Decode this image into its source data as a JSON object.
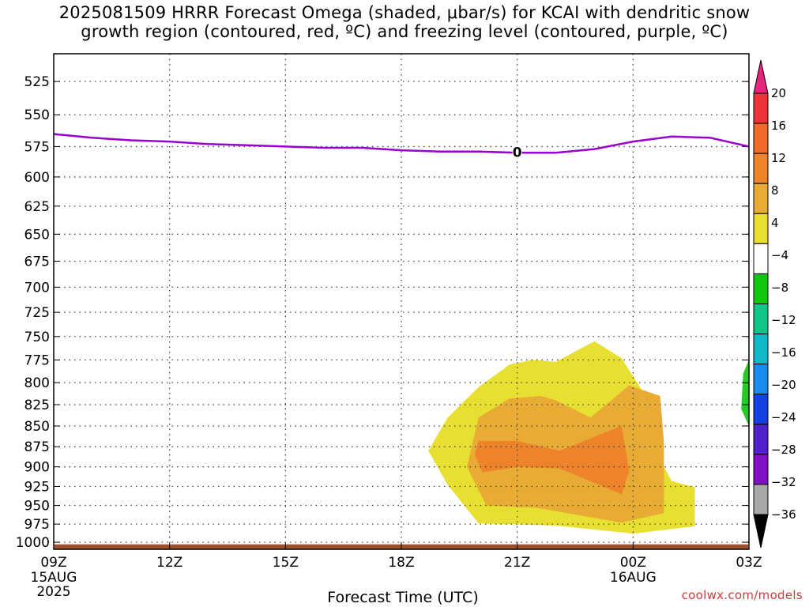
{
  "title": {
    "line1": "2025081509 HRRR Forecast Omega (shaded, μbar/s) for KCAI with dendritic snow",
    "line2": "growth region (contoured, red, ºC) and freezing level (contoured, purple, ºC)"
  },
  "credit": "coolwx.com/models",
  "colors": {
    "freezing_level": "#9a00d0",
    "ground": "#a0522d",
    "omega_4_8": "#e8df33",
    "omega_8_12": "#e8ab33",
    "omega_12_16": "#ed832b",
    "omega_neg4_neg8": "#22cc22",
    "grid": "#444444"
  },
  "chart_data": {
    "type": "time-height cross section",
    "xlabel": "Forecast Time (UTC)",
    "ylabel": "",
    "x_ticks": [
      {
        "hour": 0,
        "label": "09Z",
        "sub": [
          "15AUG",
          "2025"
        ]
      },
      {
        "hour": 3,
        "label": "12Z",
        "sub": []
      },
      {
        "hour": 6,
        "label": "15Z",
        "sub": []
      },
      {
        "hour": 9,
        "label": "18Z",
        "sub": []
      },
      {
        "hour": 12,
        "label": "21Z",
        "sub": []
      },
      {
        "hour": 15,
        "label": "00Z",
        "sub": [
          "16AUG"
        ]
      },
      {
        "hour": 18,
        "label": "03Z",
        "sub": []
      }
    ],
    "xlim": [
      0,
      18
    ],
    "ylim_hPa": [
      1010,
      505
    ],
    "y_scale": "log-pressure",
    "y_ticks": [
      525,
      550,
      575,
      600,
      625,
      650,
      675,
      700,
      725,
      750,
      775,
      800,
      825,
      850,
      875,
      900,
      925,
      950,
      975,
      1000
    ],
    "grid": true,
    "freezing_level": {
      "label": "0",
      "label_at": [
        12,
        580
      ],
      "points": [
        [
          0,
          565
        ],
        [
          1,
          568
        ],
        [
          2,
          570
        ],
        [
          3,
          571
        ],
        [
          4,
          573
        ],
        [
          5,
          574
        ],
        [
          6,
          575
        ],
        [
          7,
          576
        ],
        [
          8,
          576
        ],
        [
          9,
          578
        ],
        [
          10,
          579
        ],
        [
          11,
          579
        ],
        [
          12,
          580
        ],
        [
          13,
          580
        ],
        [
          14,
          577
        ],
        [
          15,
          571
        ],
        [
          16,
          567
        ],
        [
          17,
          568
        ],
        [
          18,
          575
        ]
      ]
    },
    "omega_contours": [
      {
        "level": "4 to 8",
        "polygon": [
          [
            12.4,
            775
          ],
          [
            13.0,
            777
          ],
          [
            14.0,
            755
          ],
          [
            14.7,
            773
          ],
          [
            15.4,
            820
          ],
          [
            15.4,
            865
          ],
          [
            16.0,
            918
          ],
          [
            16.6,
            926
          ],
          [
            16.6,
            978
          ],
          [
            15.0,
            988
          ],
          [
            13.0,
            977
          ],
          [
            11.0,
            974
          ],
          [
            10.2,
            923
          ],
          [
            9.7,
            880
          ],
          [
            10.2,
            840
          ],
          [
            11.0,
            805
          ],
          [
            11.8,
            780
          ]
        ]
      },
      {
        "level": "8 to 12",
        "polygon": [
          [
            12.6,
            815
          ],
          [
            13.0,
            820
          ],
          [
            13.9,
            840
          ],
          [
            14.9,
            803
          ],
          [
            15.7,
            815
          ],
          [
            15.8,
            870
          ],
          [
            15.8,
            960
          ],
          [
            14.7,
            973
          ],
          [
            12.5,
            953
          ],
          [
            11.2,
            950
          ],
          [
            10.7,
            900
          ],
          [
            11.0,
            840
          ],
          [
            11.8,
            818
          ]
        ]
      },
      {
        "level": "12 to 16",
        "polygon": [
          [
            11.0,
            868
          ],
          [
            12.0,
            868
          ],
          [
            13.1,
            880
          ],
          [
            14.7,
            850
          ],
          [
            14.9,
            905
          ],
          [
            14.7,
            935
          ],
          [
            13.1,
            902
          ],
          [
            12.0,
            900
          ],
          [
            11.1,
            907
          ],
          [
            10.9,
            885
          ]
        ]
      },
      {
        "level": "-4 to -8",
        "polygon": [
          [
            18.0,
            775
          ],
          [
            17.85,
            790
          ],
          [
            17.8,
            830
          ],
          [
            18.0,
            850
          ]
        ]
      }
    ],
    "colorbar": {
      "labels": [
        20,
        16,
        12,
        8,
        4,
        -4,
        -8,
        -12,
        -16,
        -20,
        -24,
        -28,
        -32,
        -36
      ],
      "colors": [
        "#e8237e",
        "#ee3338",
        "#f06a2a",
        "#ed832b",
        "#e8ab33",
        "#e8df33",
        "#ffffff",
        "#11c611",
        "#11c48a",
        "#11b8c8",
        "#1a8cee",
        "#1440e0",
        "#5020c8",
        "#8010c4",
        "#a8a8a8",
        "#000000"
      ]
    }
  }
}
